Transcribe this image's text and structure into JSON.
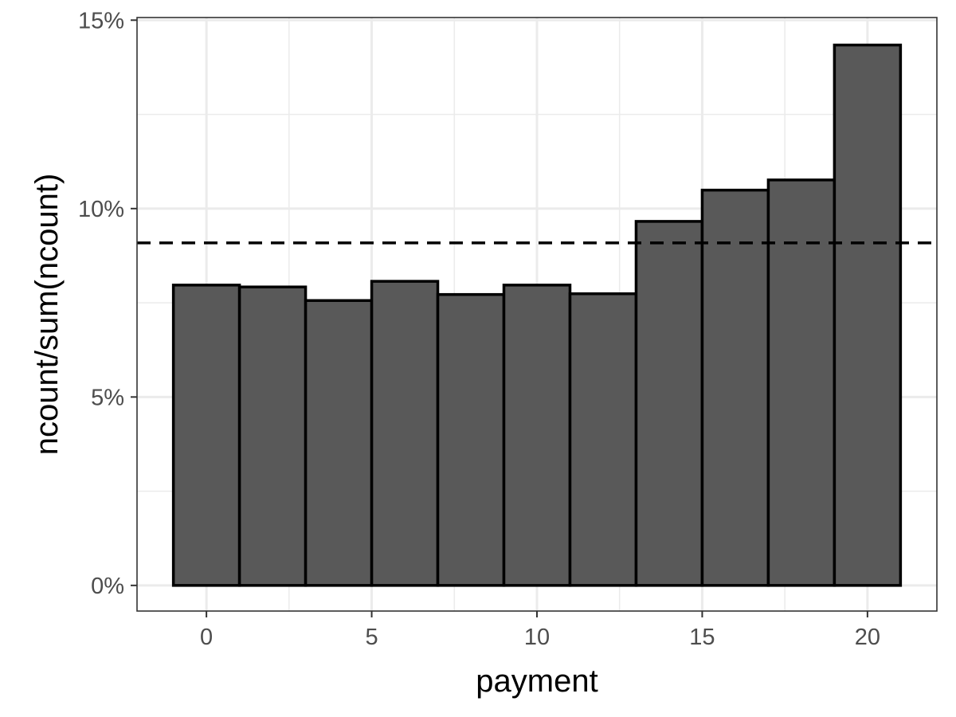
{
  "chart_data": {
    "type": "bar",
    "title": "",
    "xlabel": "payment",
    "ylabel": "ncount/sum(ncount)",
    "xlim": [
      -2.1,
      22.1
    ],
    "ylim": [
      -0.0068,
      0.1507
    ],
    "x_ticks": [
      0,
      5,
      10,
      15,
      20
    ],
    "x_tick_labels": [
      "0",
      "5",
      "10",
      "15",
      "20"
    ],
    "y_ticks": [
      0,
      0.05,
      0.1,
      0.15
    ],
    "y_tick_labels": [
      "0%",
      "5%",
      "10%",
      "15%"
    ],
    "bin_width": 2,
    "bins": [
      {
        "x": 0,
        "value": 0.0797
      },
      {
        "x": 2,
        "value": 0.0792
      },
      {
        "x": 4,
        "value": 0.0756
      },
      {
        "x": 6,
        "value": 0.0807
      },
      {
        "x": 8,
        "value": 0.0772
      },
      {
        "x": 10,
        "value": 0.0797
      },
      {
        "x": 12,
        "value": 0.0774
      },
      {
        "x": 14,
        "value": 0.0966
      },
      {
        "x": 16,
        "value": 0.1049
      },
      {
        "x": 18,
        "value": 0.1076
      },
      {
        "x": 20,
        "value": 0.1434
      }
    ],
    "reference_line": {
      "y": 0.0909,
      "style": "dashed"
    },
    "grid": true,
    "legend": "none",
    "colors": {
      "bar_fill": "#595959",
      "bar_stroke": "#000000",
      "grid": "#ebebeb",
      "panel_border": "#333333",
      "tick_text": "#4d4d4d"
    }
  }
}
